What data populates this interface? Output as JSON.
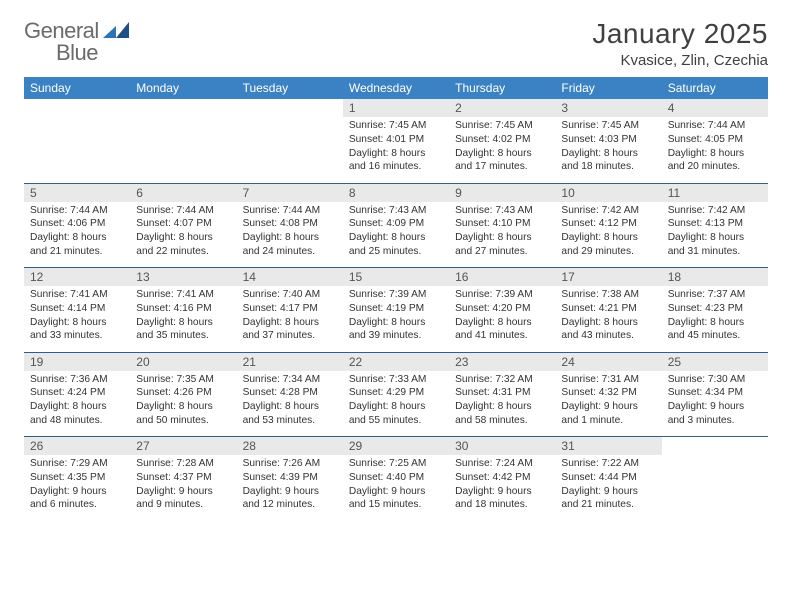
{
  "brand": {
    "line1": "General",
    "line2": "Blue"
  },
  "title": "January 2025",
  "location": "Kvasice, Zlin, Czechia",
  "colors": {
    "header_bg": "#3b82c4",
    "header_fg": "#ffffff",
    "daynum_bg": "#e9e9e9",
    "rule": "#2e5e8a",
    "text": "#333333",
    "title": "#404040"
  },
  "weekday_labels": [
    "Sunday",
    "Monday",
    "Tuesday",
    "Wednesday",
    "Thursday",
    "Friday",
    "Saturday"
  ],
  "weeks": [
    [
      {
        "n": "",
        "lines": []
      },
      {
        "n": "",
        "lines": []
      },
      {
        "n": "",
        "lines": []
      },
      {
        "n": "1",
        "lines": [
          "Sunrise: 7:45 AM",
          "Sunset: 4:01 PM",
          "Daylight: 8 hours and 16 minutes."
        ]
      },
      {
        "n": "2",
        "lines": [
          "Sunrise: 7:45 AM",
          "Sunset: 4:02 PM",
          "Daylight: 8 hours and 17 minutes."
        ]
      },
      {
        "n": "3",
        "lines": [
          "Sunrise: 7:45 AM",
          "Sunset: 4:03 PM",
          "Daylight: 8 hours and 18 minutes."
        ]
      },
      {
        "n": "4",
        "lines": [
          "Sunrise: 7:44 AM",
          "Sunset: 4:05 PM",
          "Daylight: 8 hours and 20 minutes."
        ]
      }
    ],
    [
      {
        "n": "5",
        "lines": [
          "Sunrise: 7:44 AM",
          "Sunset: 4:06 PM",
          "Daylight: 8 hours and 21 minutes."
        ]
      },
      {
        "n": "6",
        "lines": [
          "Sunrise: 7:44 AM",
          "Sunset: 4:07 PM",
          "Daylight: 8 hours and 22 minutes."
        ]
      },
      {
        "n": "7",
        "lines": [
          "Sunrise: 7:44 AM",
          "Sunset: 4:08 PM",
          "Daylight: 8 hours and 24 minutes."
        ]
      },
      {
        "n": "8",
        "lines": [
          "Sunrise: 7:43 AM",
          "Sunset: 4:09 PM",
          "Daylight: 8 hours and 25 minutes."
        ]
      },
      {
        "n": "9",
        "lines": [
          "Sunrise: 7:43 AM",
          "Sunset: 4:10 PM",
          "Daylight: 8 hours and 27 minutes."
        ]
      },
      {
        "n": "10",
        "lines": [
          "Sunrise: 7:42 AM",
          "Sunset: 4:12 PM",
          "Daylight: 8 hours and 29 minutes."
        ]
      },
      {
        "n": "11",
        "lines": [
          "Sunrise: 7:42 AM",
          "Sunset: 4:13 PM",
          "Daylight: 8 hours and 31 minutes."
        ]
      }
    ],
    [
      {
        "n": "12",
        "lines": [
          "Sunrise: 7:41 AM",
          "Sunset: 4:14 PM",
          "Daylight: 8 hours and 33 minutes."
        ]
      },
      {
        "n": "13",
        "lines": [
          "Sunrise: 7:41 AM",
          "Sunset: 4:16 PM",
          "Daylight: 8 hours and 35 minutes."
        ]
      },
      {
        "n": "14",
        "lines": [
          "Sunrise: 7:40 AM",
          "Sunset: 4:17 PM",
          "Daylight: 8 hours and 37 minutes."
        ]
      },
      {
        "n": "15",
        "lines": [
          "Sunrise: 7:39 AM",
          "Sunset: 4:19 PM",
          "Daylight: 8 hours and 39 minutes."
        ]
      },
      {
        "n": "16",
        "lines": [
          "Sunrise: 7:39 AM",
          "Sunset: 4:20 PM",
          "Daylight: 8 hours and 41 minutes."
        ]
      },
      {
        "n": "17",
        "lines": [
          "Sunrise: 7:38 AM",
          "Sunset: 4:21 PM",
          "Daylight: 8 hours and 43 minutes."
        ]
      },
      {
        "n": "18",
        "lines": [
          "Sunrise: 7:37 AM",
          "Sunset: 4:23 PM",
          "Daylight: 8 hours and 45 minutes."
        ]
      }
    ],
    [
      {
        "n": "19",
        "lines": [
          "Sunrise: 7:36 AM",
          "Sunset: 4:24 PM",
          "Daylight: 8 hours and 48 minutes."
        ]
      },
      {
        "n": "20",
        "lines": [
          "Sunrise: 7:35 AM",
          "Sunset: 4:26 PM",
          "Daylight: 8 hours and 50 minutes."
        ]
      },
      {
        "n": "21",
        "lines": [
          "Sunrise: 7:34 AM",
          "Sunset: 4:28 PM",
          "Daylight: 8 hours and 53 minutes."
        ]
      },
      {
        "n": "22",
        "lines": [
          "Sunrise: 7:33 AM",
          "Sunset: 4:29 PM",
          "Daylight: 8 hours and 55 minutes."
        ]
      },
      {
        "n": "23",
        "lines": [
          "Sunrise: 7:32 AM",
          "Sunset: 4:31 PM",
          "Daylight: 8 hours and 58 minutes."
        ]
      },
      {
        "n": "24",
        "lines": [
          "Sunrise: 7:31 AM",
          "Sunset: 4:32 PM",
          "Daylight: 9 hours and 1 minute."
        ]
      },
      {
        "n": "25",
        "lines": [
          "Sunrise: 7:30 AM",
          "Sunset: 4:34 PM",
          "Daylight: 9 hours and 3 minutes."
        ]
      }
    ],
    [
      {
        "n": "26",
        "lines": [
          "Sunrise: 7:29 AM",
          "Sunset: 4:35 PM",
          "Daylight: 9 hours and 6 minutes."
        ]
      },
      {
        "n": "27",
        "lines": [
          "Sunrise: 7:28 AM",
          "Sunset: 4:37 PM",
          "Daylight: 9 hours and 9 minutes."
        ]
      },
      {
        "n": "28",
        "lines": [
          "Sunrise: 7:26 AM",
          "Sunset: 4:39 PM",
          "Daylight: 9 hours and 12 minutes."
        ]
      },
      {
        "n": "29",
        "lines": [
          "Sunrise: 7:25 AM",
          "Sunset: 4:40 PM",
          "Daylight: 9 hours and 15 minutes."
        ]
      },
      {
        "n": "30",
        "lines": [
          "Sunrise: 7:24 AM",
          "Sunset: 4:42 PM",
          "Daylight: 9 hours and 18 minutes."
        ]
      },
      {
        "n": "31",
        "lines": [
          "Sunrise: 7:22 AM",
          "Sunset: 4:44 PM",
          "Daylight: 9 hours and 21 minutes."
        ]
      },
      {
        "n": "",
        "lines": []
      }
    ]
  ]
}
